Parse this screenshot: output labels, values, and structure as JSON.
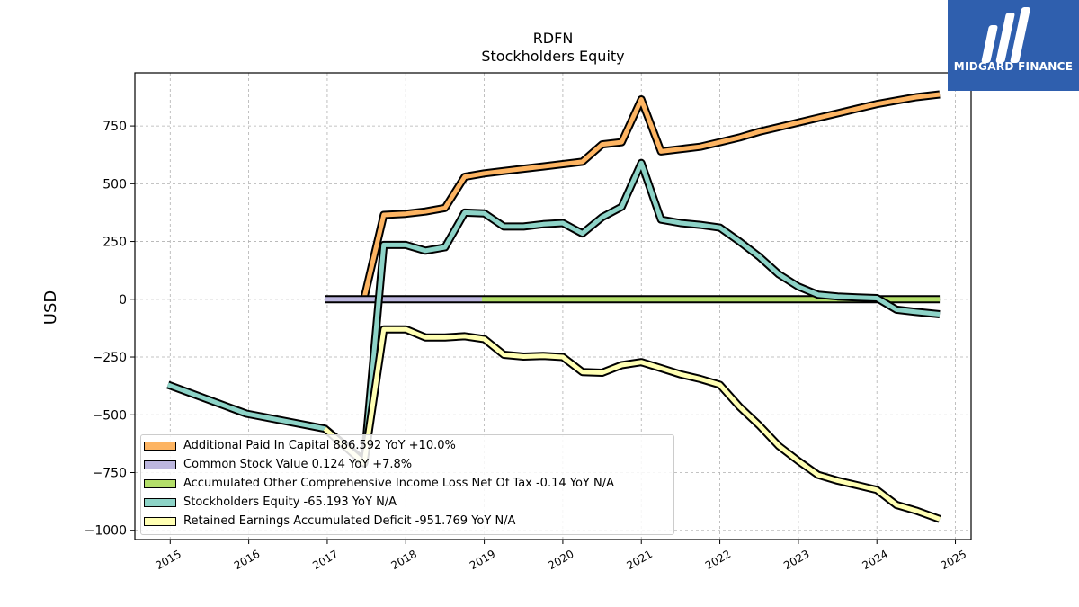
{
  "header": {
    "title_line1": "RDFN",
    "title_line2": "Stockholders  Equity"
  },
  "logo": {
    "text": "MIDGARD FINANCE",
    "bg_color": "#2f5fae"
  },
  "chart_data": {
    "type": "line",
    "title": "RDFN Stockholders  Equity",
    "xlabel": "",
    "ylabel": "USD",
    "xlim": [
      2014.55,
      2025.2
    ],
    "ylim": [
      -1040,
      980
    ],
    "xticks": [
      "2015",
      "2016",
      "2017",
      "2018",
      "2019",
      "2020",
      "2021",
      "2022",
      "2023",
      "2024",
      "2025"
    ],
    "yticks": [
      750,
      500,
      250,
      0,
      -250,
      -500,
      -750,
      -1000
    ],
    "ytick_labels": [
      "750",
      "500",
      "250",
      "0",
      "−250",
      "−500",
      "−750",
      "−1000"
    ],
    "grid": true,
    "legend_position": "lower-left",
    "series": [
      {
        "name": "Additional Paid In Capital",
        "legend": "Additional Paid In Capital  886.592 YoY +10.0%",
        "color": "#fdb462",
        "x": [
          2017.47,
          2017.72,
          2018.0,
          2018.25,
          2018.5,
          2018.75,
          2019.0,
          2019.25,
          2019.5,
          2019.75,
          2020.0,
          2020.25,
          2020.5,
          2020.75,
          2021.0,
          2021.25,
          2021.5,
          2021.75,
          2022.0,
          2022.25,
          2022.5,
          2022.75,
          2023.0,
          2023.25,
          2023.5,
          2023.75,
          2024.0,
          2024.25,
          2024.5,
          2024.8
        ],
        "y": [
          5,
          365,
          370,
          380,
          395,
          530,
          545,
          555,
          565,
          575,
          585,
          595,
          670,
          680,
          865,
          640,
          650,
          660,
          680,
          700,
          725,
          745,
          765,
          785,
          805,
          825,
          845,
          860,
          875,
          886.592
        ]
      },
      {
        "name": "Common Stock Value",
        "legend": "Common Stock Value  0.124 YoY +7.8%",
        "color": "#bcb6de",
        "x": [
          2016.97,
          2018.97
        ],
        "y": [
          0.09,
          0.124
        ]
      },
      {
        "name": "Accumulated Other Comprehensive Income Loss Net Of Tax",
        "legend": "Accumulated Other Comprehensive Income Loss Net Of Tax  -0.14 YoY N/A",
        "color": "#b3de69",
        "x": [
          2018.97,
          2024.8
        ],
        "y": [
          0,
          -0.14
        ]
      },
      {
        "name": "Stockholders Equity",
        "legend": "Stockholders Equity  -65.193 YoY N/A",
        "color": "#8dd3c7",
        "x": [
          2014.97,
          2015.97,
          2016.97,
          2017.47,
          2017.72,
          2018.0,
          2018.25,
          2018.5,
          2018.75,
          2019.0,
          2019.25,
          2019.5,
          2019.75,
          2020.0,
          2020.25,
          2020.5,
          2020.75,
          2021.0,
          2021.25,
          2021.5,
          2021.75,
          2022.0,
          2022.25,
          2022.5,
          2022.75,
          2023.0,
          2023.25,
          2023.5,
          2023.75,
          2024.0,
          2024.25,
          2024.5,
          2024.8
        ],
        "y": [
          -370,
          -495,
          -560,
          -700,
          235,
          235,
          210,
          225,
          375,
          372,
          315,
          315,
          325,
          330,
          285,
          355,
          400,
          590,
          345,
          330,
          322,
          310,
          250,
          185,
          108,
          55,
          20,
          12,
          8,
          5,
          -45,
          -55,
          -65.193
        ]
      },
      {
        "name": "Retained Earnings Accumulated Deficit",
        "legend": "Retained Earnings Accumulated Deficit  -951.769 YoY N/A",
        "color": "#ffffb3",
        "x": [
          2016.97,
          2017.47,
          2017.72,
          2018.0,
          2018.25,
          2018.5,
          2018.75,
          2019.0,
          2019.25,
          2019.5,
          2019.75,
          2020.0,
          2020.25,
          2020.5,
          2020.75,
          2021.0,
          2021.25,
          2021.5,
          2021.75,
          2022.0,
          2022.25,
          2022.5,
          2022.75,
          2023.0,
          2023.25,
          2023.5,
          2023.75,
          2024.0,
          2024.25,
          2024.5,
          2024.8
        ],
        "y": [
          -560,
          -710,
          -130,
          -130,
          -165,
          -165,
          -160,
          -172,
          -240,
          -248,
          -245,
          -250,
          -315,
          -318,
          -285,
          -272,
          -298,
          -325,
          -345,
          -370,
          -465,
          -545,
          -635,
          -700,
          -760,
          -785,
          -805,
          -825,
          -890,
          -915,
          -951.769
        ]
      }
    ]
  }
}
